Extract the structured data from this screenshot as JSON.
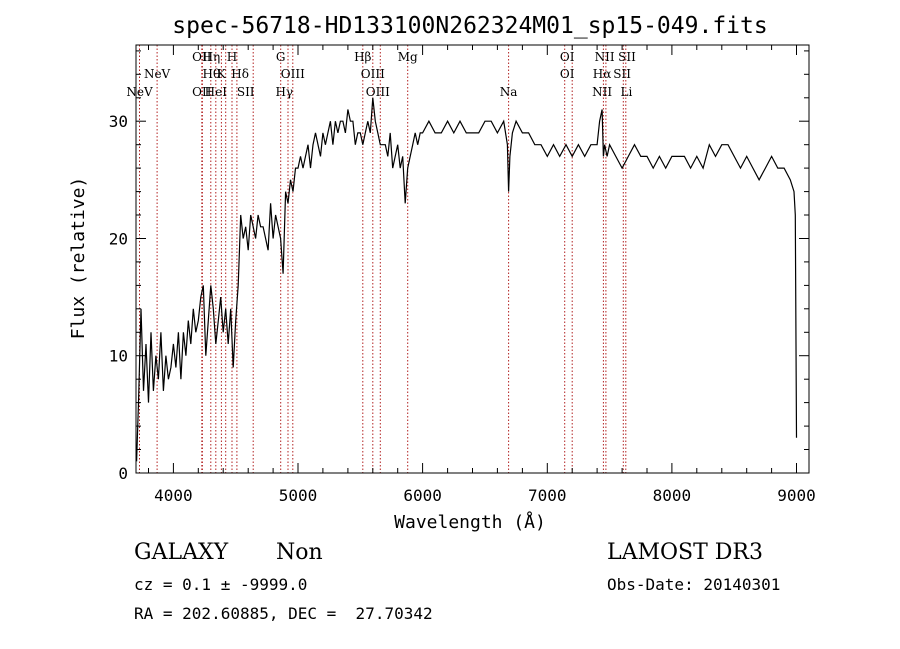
{
  "chart_data": {
    "type": "line",
    "title": "spec-56718-HD133100N262324M01_sp15-049.fits",
    "xlabel": "Wavelength (Å)",
    "ylabel": "Flux (relative)",
    "xlim": [
      3700,
      9100
    ],
    "ylim": [
      0,
      36.5
    ],
    "x_ticks": [
      {
        "value": 4000,
        "label": "4000"
      },
      {
        "value": 5000,
        "label": "5000"
      },
      {
        "value": 6000,
        "label": "6000"
      },
      {
        "value": 7000,
        "label": "7000"
      },
      {
        "value": 8000,
        "label": "8000"
      },
      {
        "value": 9000,
        "label": "9000"
      }
    ],
    "y_ticks": [
      {
        "value": 0,
        "label": "0"
      },
      {
        "value": 10,
        "label": "10"
      },
      {
        "value": 20,
        "label": "20"
      },
      {
        "value": 30,
        "label": "30"
      }
    ],
    "series": [
      {
        "x": [
          3705,
          3720,
          3740,
          3760,
          3780,
          3800,
          3820,
          3840,
          3860,
          3880,
          3900,
          3920,
          3940,
          3960,
          3980,
          4000,
          4020,
          4040,
          4060,
          4080,
          4100,
          4120,
          4140,
          4160,
          4180,
          4200,
          4220,
          4240,
          4260,
          4280,
          4300,
          4320,
          4340,
          4360,
          4380,
          4400,
          4420,
          4440,
          4460,
          4480,
          4500,
          4520,
          4540,
          4560,
          4580,
          4600,
          4620,
          4640,
          4660,
          4680,
          4700,
          4720,
          4740,
          4760,
          4780,
          4800,
          4820,
          4840,
          4860,
          4880,
          4900,
          4920,
          4940,
          4960,
          4980,
          5000,
          5020,
          5040,
          5060,
          5080,
          5100,
          5120,
          5140,
          5160,
          5180,
          5200,
          5220,
          5240,
          5260,
          5280,
          5300,
          5320,
          5340,
          5360,
          5380,
          5400,
          5420,
          5440,
          5460,
          5480,
          5500,
          5520,
          5540,
          5560,
          5580,
          5600,
          5620,
          5640,
          5660,
          5680,
          5700,
          5720,
          5740,
          5760,
          5780,
          5800,
          5820,
          5840,
          5860,
          5880,
          5900,
          5920,
          5940,
          5960,
          5980,
          6000,
          6050,
          6100,
          6150,
          6200,
          6250,
          6300,
          6350,
          6400,
          6450,
          6500,
          6550,
          6600,
          6650,
          6680,
          6690,
          6700,
          6720,
          6750,
          6800,
          6850,
          6900,
          6950,
          7000,
          7050,
          7100,
          7150,
          7200,
          7250,
          7300,
          7350,
          7400,
          7420,
          7440,
          7450,
          7460,
          7480,
          7500,
          7550,
          7600,
          7650,
          7700,
          7750,
          7800,
          7850,
          7900,
          7950,
          8000,
          8050,
          8100,
          8150,
          8200,
          8250,
          8300,
          8350,
          8400,
          8450,
          8500,
          8550,
          8600,
          8650,
          8700,
          8750,
          8800,
          8850,
          8900,
          8950,
          8980,
          8990,
          9000
        ],
        "y": [
          1,
          6,
          14,
          7,
          11,
          6,
          12,
          7,
          10,
          8,
          12,
          7,
          10,
          8,
          9,
          11,
          9,
          12,
          8,
          12,
          10,
          13,
          11,
          14,
          12,
          13,
          15,
          16,
          10,
          13,
          16,
          14,
          11,
          13,
          15,
          12,
          14,
          11,
          14,
          9,
          13,
          16,
          22,
          20,
          21,
          19,
          22,
          21,
          20,
          22,
          21,
          21,
          20,
          19,
          23,
          20,
          22,
          21,
          20,
          17,
          24,
          23,
          25,
          24,
          26,
          26,
          27,
          26,
          27,
          28,
          26,
          28,
          29,
          28,
          27,
          29,
          28,
          29,
          30,
          28,
          30,
          29,
          30,
          30,
          29,
          31,
          30,
          30,
          28,
          29,
          29,
          28,
          29,
          30,
          29,
          32,
          30,
          29,
          28,
          28,
          28,
          27,
          29,
          26,
          27,
          28,
          26,
          27,
          23,
          26,
          27,
          28,
          29,
          28,
          29,
          29,
          30,
          29,
          29,
          30,
          29,
          30,
          29,
          29,
          29,
          30,
          30,
          29,
          30,
          28,
          24,
          27,
          29,
          30,
          29,
          29,
          28,
          28,
          27,
          28,
          27,
          28,
          27,
          28,
          27,
          28,
          28,
          30,
          31,
          27,
          28,
          27,
          28,
          27,
          26,
          27,
          28,
          27,
          27,
          26,
          27,
          26,
          27,
          27,
          27,
          26,
          27,
          26,
          28,
          27,
          28,
          28,
          27,
          26,
          27,
          26,
          25,
          26,
          27,
          26,
          26,
          25,
          24,
          22,
          3
        ]
      }
    ],
    "lines": [
      {
        "x": 3728,
        "label": "NeV",
        "row": 2
      },
      {
        "x": 3869,
        "label": "NeV",
        "row": 1
      },
      {
        "x": 4228,
        "label": "OII",
        "row": 0
      },
      {
        "x": 4228,
        "label": "OII",
        "row": 2
      },
      {
        "x": 4305,
        "label": "Hη",
        "row": 0
      },
      {
        "x": 4305,
        "label": "Hθ",
        "row": 1
      },
      {
        "x": 4340,
        "label": "HeI",
        "row": 2
      },
      {
        "x": 4385,
        "label": "K",
        "row": 1
      },
      {
        "x": 4470,
        "label": "H",
        "row": 0
      },
      {
        "x": 4535,
        "label": "Hδ",
        "row": 1
      },
      {
        "x": 4580,
        "label": "SII",
        "row": 2
      },
      {
        "x": 4861,
        "label": "G",
        "row": 0
      },
      {
        "x": 4958,
        "label": "OIII",
        "row": 1
      },
      {
        "x": 4890,
        "label": "Hγ",
        "row": 2
      },
      {
        "x": 5520,
        "label": "Hβ",
        "row": 0
      },
      {
        "x": 5600,
        "label": "OIII",
        "row": 1
      },
      {
        "x": 5640,
        "label": "OIII",
        "row": 2
      },
      {
        "x": 5880,
        "label": "Mg",
        "row": 0
      },
      {
        "x": 6690,
        "label": "Na",
        "row": 2
      },
      {
        "x": 7160,
        "label": "OI",
        "row": 0
      },
      {
        "x": 7160,
        "label": "OI",
        "row": 1
      },
      {
        "x": 7460,
        "label": "NII",
        "row": 0
      },
      {
        "x": 7440,
        "label": "Hα",
        "row": 1
      },
      {
        "x": 7440,
        "label": "NII",
        "row": 2
      },
      {
        "x": 7640,
        "label": "SII",
        "row": 0
      },
      {
        "x": 7600,
        "label": "SII",
        "row": 1
      },
      {
        "x": 7635,
        "label": "Li",
        "row": 2
      }
    ],
    "line_positions": [
      3728,
      3869,
      4228,
      4233,
      4300,
      4340,
      4385,
      4420,
      4470,
      4510,
      4640,
      4861,
      4920,
      4958,
      5520,
      5600,
      5660,
      5880,
      6690,
      7140,
      7200,
      7450,
      7470,
      7610,
      7630
    ],
    "grid": false,
    "legend": "none"
  },
  "footer": {
    "class_label": "GALAXY",
    "subclass_label": "Non",
    "survey": "LAMOST DR3",
    "cz_text": "cz = 0.1 ± -9999.0",
    "obs_date": "Obs-Date: 20140301",
    "coords": "RA = 202.60885, DEC =  27.70342"
  }
}
